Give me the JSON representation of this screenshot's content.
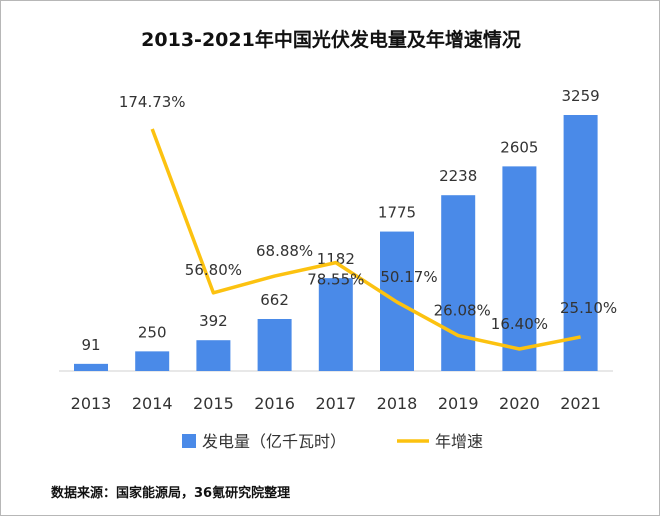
{
  "title": "2013-2021年中国光伏发电量及年增速情况",
  "source_note": "数据来源：国家能源局，36氪研究院整理",
  "colors": {
    "bar": "#4a8ae8",
    "line": "#fcc210",
    "text": "#333333",
    "axis": "#d0d0d0"
  },
  "chart_data": {
    "type": "bar",
    "title": "2013-2021年中国光伏发电量及年增速情况",
    "categories": [
      "2013",
      "2014",
      "2015",
      "2016",
      "2017",
      "2018",
      "2019",
      "2020",
      "2021"
    ],
    "series": [
      {
        "name": "发电量（亿千瓦时）",
        "type": "bar",
        "values": [
          91,
          250,
          392,
          662,
          1182,
          1775,
          2238,
          2605,
          3259
        ],
        "labels": [
          "91",
          "250",
          "392",
          "662",
          "1182",
          "1775",
          "2238",
          "2605",
          "3259"
        ]
      },
      {
        "name": "年增速",
        "type": "line",
        "values": [
          null,
          174.73,
          56.8,
          68.88,
          78.55,
          50.17,
          26.08,
          16.4,
          25.1
        ],
        "labels": [
          "",
          "174.73%",
          "56.80%",
          "68.88%",
          "78.55%",
          "50.17%",
          "26.08%",
          "16.40%",
          "25.10%"
        ]
      }
    ],
    "legend_position": "bottom",
    "grid": false
  }
}
